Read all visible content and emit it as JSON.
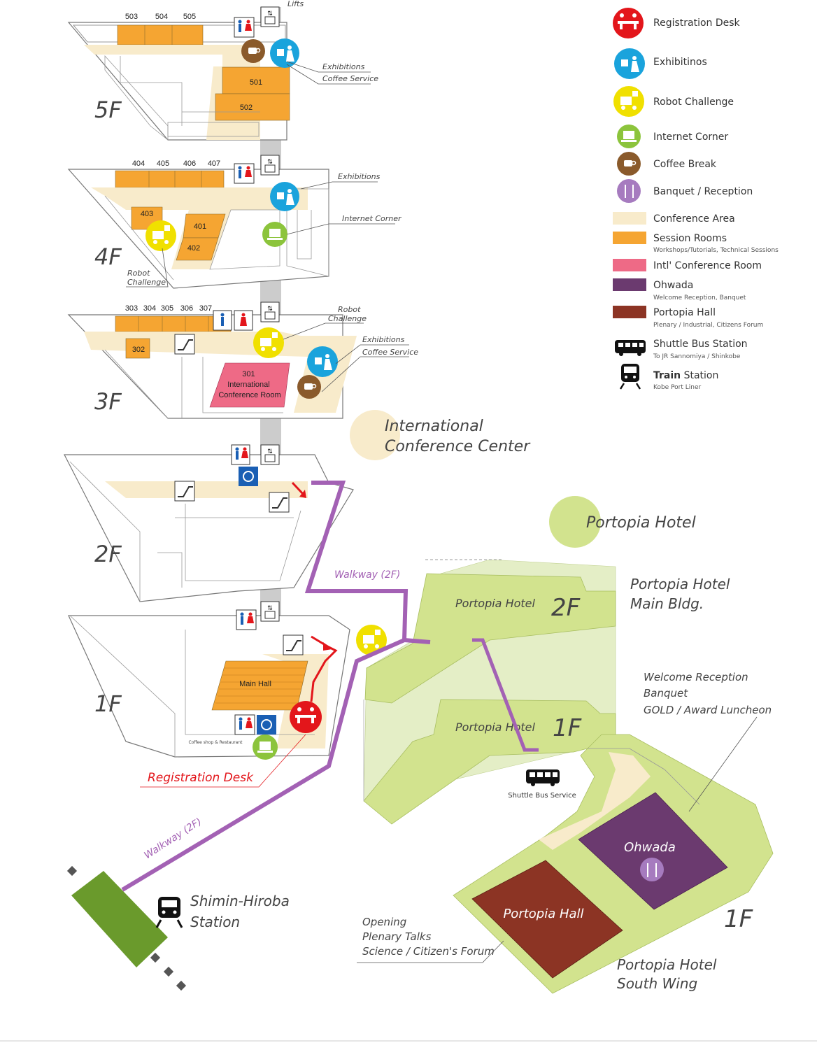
{
  "floors": {
    "f5": {
      "label": "5F",
      "rooms": [
        "503",
        "504",
        "505",
        "501",
        "502"
      ]
    },
    "f4": {
      "label": "4F",
      "rooms": [
        "404",
        "405",
        "406",
        "407",
        "403",
        "401",
        "402"
      ]
    },
    "f3": {
      "label": "3F",
      "rooms": [
        "303",
        "304",
        "305",
        "306",
        "307",
        "302"
      ],
      "intl_room": "301\nInternational\nConference Room"
    },
    "f2": {
      "label": "2F"
    },
    "f1": {
      "label": "1F",
      "main_hall": "Main Hall",
      "coffee_shop": "Coffee shop & Restaurant"
    }
  },
  "callouts": {
    "lifts": "Lifts",
    "f5_exhibitions": "Exhibitions",
    "f5_coffee": "Coffee Service",
    "f4_exhibitions": "Exhibitions",
    "f4_internet": "Internet Corner",
    "f4_robot_1": "Robot",
    "f4_robot_2": "Challenge",
    "f3_robot_1": "Robot",
    "f3_robot_2": "Challenge",
    "f3_exhibitions": "Exhibitions",
    "f3_coffee": "Coffee Service",
    "registration_desk": "Registration Desk"
  },
  "places": {
    "icc_1": "International",
    "icc_2": "Conference Center",
    "hotel": "Portopia Hotel",
    "main_bldg_1": "Portopia Hotel",
    "main_bldg_2": "Main Bldg.",
    "hotel_2f": "Portopia Hotel",
    "hotel_2f_floor": "2F",
    "hotel_1f": "Portopia Hotel",
    "hotel_1f_floor": "1F",
    "walkway_1": "Walkway (2F)",
    "walkway_2": "Walkway (2F)",
    "shuttle": "Shuttle Bus Service",
    "station_1": "Shimin-Hiroba",
    "station_2": "Station",
    "welcome_1": "Welcome Reception",
    "welcome_2": "Banquet",
    "welcome_3": "GOLD / Award Luncheon",
    "opening_1": "Opening",
    "opening_2": "Plenary Talks",
    "opening_3": "Science / Citizen's Forum",
    "ohwada": "Ohwada",
    "portopia_hall": "Portopia Hall",
    "south_1f": "1F",
    "south_1": "Portopia Hotel",
    "south_2": "South Wing"
  },
  "legend": {
    "registration": "Registration Desk",
    "exhibitions": "Exhibitinos",
    "robot": "Robot Challenge",
    "internet": "Internet Corner",
    "coffee": "Coffee Break",
    "banquet": "Banquet / Reception",
    "conference_area": "Conference Area",
    "session_rooms": "Session Rooms",
    "session_rooms_sub": "Workshops/Tutorials, Technical Sessions",
    "intl_room": "Intl' Conference Room",
    "ohwada": "Ohwada",
    "ohwada_sub": "Welcome Reception, Banquet",
    "portopia_hall": "Portopia Hall",
    "portopia_hall_sub": "Plenary / Industrial, Citizens Forum",
    "shuttle": "Shuttle Bus Station",
    "shuttle_sub": "To JR Sannomiya / Shinkobe",
    "train_bold": "Train",
    "train_rest": " Station",
    "train_sub": "Kobe Port Liner"
  },
  "colors": {
    "registration": "#e3161b",
    "exhibitions": "#1aa3dc",
    "robot": "#f0e000",
    "internet": "#8cc43c",
    "coffee": "#8a5a2b",
    "banquet": "#a67bbf",
    "conference_area": "#f8ebcb",
    "session_rooms": "#f5a532",
    "intl_room": "#ee6a86",
    "ohwada": "#6b3a6f",
    "portopia_hall": "#8c3424",
    "hotel_green": "#d2e38e",
    "walkway": "#a361b4",
    "station_green": "#6a9a2c"
  }
}
